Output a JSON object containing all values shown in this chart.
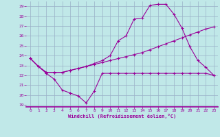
{
  "xlabel": "Windchill (Refroidissement éolien,°C)",
  "bg_color": "#c0e8e8",
  "line_color": "#990099",
  "grid_color": "#9ab0c8",
  "xlim_min": -0.5,
  "xlim_max": 23.5,
  "ylim_min": 18.8,
  "ylim_max": 29.5,
  "xticks": [
    0,
    1,
    2,
    3,
    4,
    5,
    6,
    7,
    8,
    9,
    10,
    11,
    12,
    13,
    14,
    15,
    16,
    17,
    18,
    19,
    20,
    21,
    22,
    23
  ],
  "yticks": [
    19,
    20,
    21,
    22,
    23,
    24,
    25,
    26,
    27,
    28,
    29
  ],
  "line1_x": [
    0,
    1,
    2,
    3,
    4,
    5,
    6,
    7,
    8,
    9,
    10,
    11,
    12,
    13,
    14,
    15,
    16,
    17,
    18,
    19,
    20,
    21,
    22,
    23
  ],
  "line1_y": [
    23.7,
    22.9,
    22.2,
    21.6,
    20.5,
    20.2,
    19.9,
    19.2,
    20.4,
    22.2,
    22.2,
    22.2,
    22.2,
    22.2,
    22.2,
    22.2,
    22.2,
    22.2,
    22.2,
    22.2,
    22.2,
    22.2,
    22.2,
    22.0
  ],
  "line2_x": [
    0,
    1,
    2,
    3,
    4,
    5,
    6,
    7,
    8,
    9,
    10,
    11,
    12,
    13,
    14,
    15,
    16,
    17,
    18,
    19,
    20,
    21,
    22,
    23
  ],
  "line2_y": [
    23.7,
    22.9,
    22.3,
    22.3,
    22.3,
    22.5,
    22.7,
    22.9,
    23.1,
    23.3,
    23.5,
    23.7,
    23.9,
    24.1,
    24.3,
    24.6,
    24.9,
    25.2,
    25.5,
    25.8,
    26.1,
    26.4,
    26.7,
    26.9
  ],
  "line3_x": [
    0,
    1,
    2,
    3,
    4,
    5,
    6,
    7,
    8,
    9,
    10,
    11,
    12,
    13,
    14,
    15,
    16,
    17,
    18,
    19,
    20,
    21,
    22,
    23
  ],
  "line3_y": [
    23.7,
    22.9,
    22.3,
    22.3,
    22.3,
    22.5,
    22.7,
    22.9,
    23.2,
    23.5,
    24.0,
    25.5,
    26.0,
    27.7,
    27.8,
    29.1,
    29.2,
    29.2,
    28.2,
    26.8,
    24.9,
    23.5,
    22.8,
    22.0
  ]
}
